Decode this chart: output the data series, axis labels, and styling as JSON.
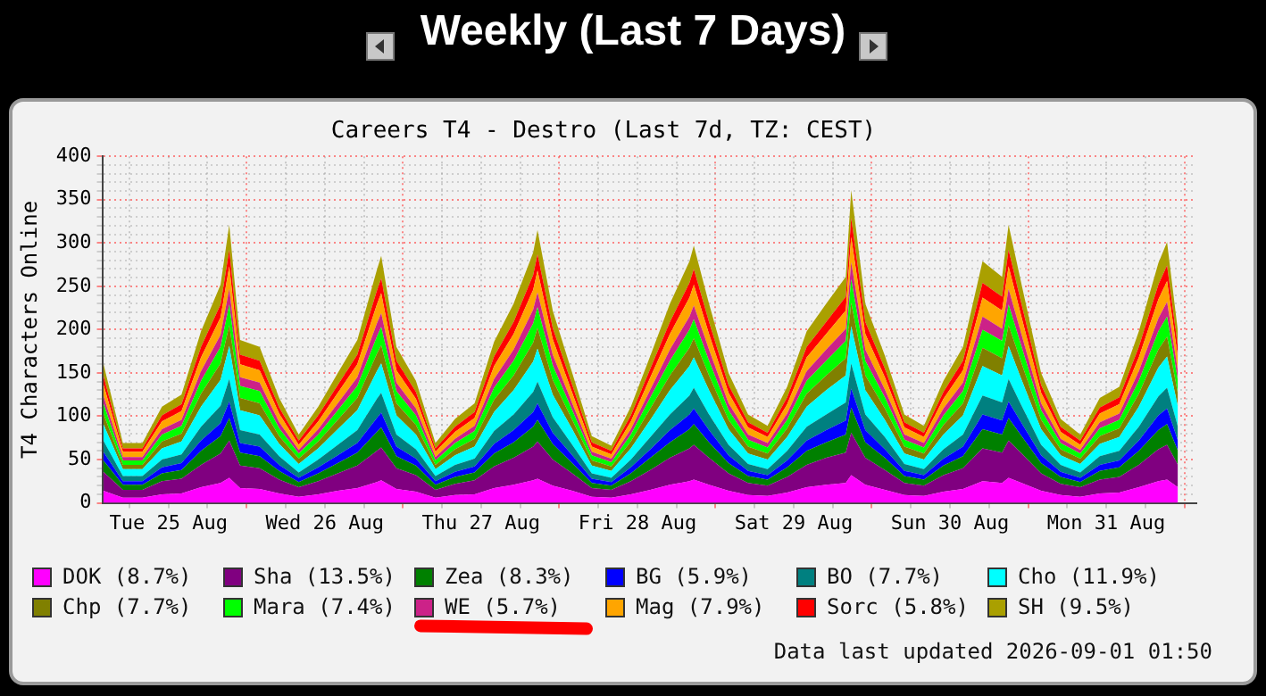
{
  "chart_data": {
    "type": "area",
    "stacked": true,
    "title": "Weekly (Last 7 Days)",
    "subtitle": "Careers T4 - Destro (Last 7d, TZ: CEST)",
    "ylabel": "T4 Characters Online",
    "annotations": [
      "Data last updated 2026-09-01 01:50"
    ],
    "legend": "bottom",
    "grid": true,
    "xlim": [
      "2026-08-25T01:50",
      "2026-09-01T01:50"
    ],
    "ylim": [
      0,
      400
    ],
    "yticks": [
      0,
      {
        "value": 10,
        "label": null
      },
      {
        "value": 20,
        "label": null
      },
      {
        "value": 30,
        "label": null
      },
      {
        "value": 40,
        "label": null
      },
      50,
      {
        "value": 60,
        "label": null
      },
      {
        "value": 70,
        "label": null
      },
      {
        "value": 80,
        "label": null
      },
      {
        "value": 90,
        "label": null
      },
      100,
      {
        "value": 110,
        "label": null
      },
      {
        "value": 120,
        "label": null
      },
      {
        "value": 130,
        "label": null
      },
      {
        "value": 140,
        "label": null
      },
      150,
      {
        "value": 160,
        "label": null
      },
      {
        "value": 170,
        "label": null
      },
      {
        "value": 180,
        "label": null
      },
      {
        "value": 190,
        "label": null
      },
      200,
      {
        "value": 210,
        "label": null
      },
      {
        "value": 220,
        "label": null
      },
      {
        "value": 230,
        "label": null
      },
      {
        "value": 240,
        "label": null
      },
      250,
      {
        "value": 260,
        "label": null
      },
      {
        "value": 270,
        "label": null
      },
      {
        "value": 280,
        "label": null
      },
      {
        "value": 290,
        "label": null
      },
      300,
      {
        "value": 310,
        "label": null
      },
      {
        "value": 320,
        "label": null
      },
      {
        "value": 330,
        "label": null
      },
      {
        "value": 340,
        "label": null
      },
      350,
      {
        "value": 360,
        "label": null
      },
      {
        "value": 370,
        "label": null
      },
      {
        "value": 380,
        "label": null
      },
      {
        "value": 390,
        "label": null
      },
      400
    ],
    "xticks": [
      {
        "value": "2026-08-25T06:00",
        "label": null
      },
      {
        "value": "2026-08-25T12:00",
        "label": "Tue 25 Aug"
      },
      {
        "value": "2026-08-25T18:00",
        "label": null
      },
      {
        "value": "2026-08-26T00:00",
        "label": null
      },
      {
        "value": "2026-08-26T06:00",
        "label": null
      },
      {
        "value": "2026-08-26T12:00",
        "label": "Wed 26 Aug"
      },
      {
        "value": "2026-08-26T18:00",
        "label": null
      },
      {
        "value": "2026-08-27T00:00",
        "label": null
      },
      {
        "value": "2026-08-27T06:00",
        "label": null
      },
      {
        "value": "2026-08-27T12:00",
        "label": "Thu 27 Aug"
      },
      {
        "value": "2026-08-27T18:00",
        "label": null
      },
      {
        "value": "2026-08-28T00:00",
        "label": null
      },
      {
        "value": "2026-08-28T06:00",
        "label": null
      },
      {
        "value": "2026-08-28T12:00",
        "label": "Fri 28 Aug"
      },
      {
        "value": "2026-08-28T18:00",
        "label": null
      },
      {
        "value": "2026-08-29T00:00",
        "label": null
      },
      {
        "value": "2026-08-29T06:00",
        "label": null
      },
      {
        "value": "2026-08-29T12:00",
        "label": "Sat 29 Aug"
      },
      {
        "value": "2026-08-29T18:00",
        "label": null
      },
      {
        "value": "2026-08-30T00:00",
        "label": null
      },
      {
        "value": "2026-08-30T06:00",
        "label": null
      },
      {
        "value": "2026-08-30T12:00",
        "label": "Sun 30 Aug"
      },
      {
        "value": "2026-08-30T18:00",
        "label": null
      },
      {
        "value": "2026-08-31T00:00",
        "label": null
      },
      {
        "value": "2026-08-31T06:00",
        "label": null
      },
      {
        "value": "2026-08-31T12:00",
        "label": "Mon 31 Aug"
      },
      {
        "value": "2026-08-31T18:00",
        "label": null
      },
      {
        "value": "2026-09-01T00:00",
        "label": null
      }
    ],
    "x": [
      "2026-08-25T02:00",
      "2026-08-25T05:00",
      "2026-08-25T08:00",
      "2026-08-25T11:00",
      "2026-08-25T14:00",
      "2026-08-25T17:00",
      "2026-08-25T20:00",
      "2026-08-25T21:20",
      "2026-08-25T23:00",
      "2026-08-26T02:00",
      "2026-08-26T05:00",
      "2026-08-26T08:00",
      "2026-08-26T11:00",
      "2026-08-26T14:00",
      "2026-08-26T17:00",
      "2026-08-26T20:00",
      "2026-08-26T20:40",
      "2026-08-26T23:00",
      "2026-08-27T02:00",
      "2026-08-27T05:00",
      "2026-08-27T08:00",
      "2026-08-27T11:00",
      "2026-08-27T14:00",
      "2026-08-27T17:00",
      "2026-08-27T20:00",
      "2026-08-27T20:40",
      "2026-08-27T23:00",
      "2026-08-28T02:00",
      "2026-08-28T05:00",
      "2026-08-28T08:00",
      "2026-08-28T11:00",
      "2026-08-28T14:00",
      "2026-08-28T17:00",
      "2026-08-28T20:00",
      "2026-08-28T20:40",
      "2026-08-28T23:00",
      "2026-08-29T02:00",
      "2026-08-29T05:00",
      "2026-08-29T08:00",
      "2026-08-29T11:00",
      "2026-08-29T14:00",
      "2026-08-29T17:00",
      "2026-08-29T20:00",
      "2026-08-29T20:50",
      "2026-08-29T23:00",
      "2026-08-30T02:00",
      "2026-08-30T05:00",
      "2026-08-30T08:00",
      "2026-08-30T11:00",
      "2026-08-30T14:00",
      "2026-08-30T17:00",
      "2026-08-30T20:00",
      "2026-08-30T21:00",
      "2026-08-30T23:00",
      "2026-08-31T02:00",
      "2026-08-31T05:00",
      "2026-08-31T08:00",
      "2026-08-31T11:00",
      "2026-08-31T14:00",
      "2026-08-31T17:00",
      "2026-08-31T20:00",
      "2026-08-31T21:20",
      "2026-08-31T23:00"
    ],
    "series": [
      {
        "name": "DOK (8.7%)",
        "color": "#ff00ff",
        "values": [
          14,
          6,
          6,
          10,
          11,
          18,
          23,
          29,
          17,
          16,
          11,
          7,
          10,
          14,
          17,
          24,
          26,
          16,
          13,
          6,
          9,
          10,
          17,
          21,
          26,
          28,
          20,
          14,
          7,
          6,
          10,
          15,
          21,
          25,
          27,
          21,
          14,
          9,
          8,
          12,
          18,
          21,
          23,
          32,
          21,
          15,
          9,
          8,
          13,
          16,
          25,
          23,
          29,
          23,
          14,
          9,
          7,
          11,
          12,
          18,
          25,
          27,
          18
        ]
      },
      {
        "name": "Sha (13.5%)",
        "color": "#800080",
        "values": [
          22,
          9,
          9,
          15,
          17,
          26,
          34,
          43,
          26,
          24,
          16,
          11,
          15,
          20,
          26,
          36,
          38,
          24,
          19,
          9,
          13,
          16,
          25,
          31,
          39,
          43,
          30,
          20,
          10,
          9,
          15,
          23,
          31,
          38,
          40,
          31,
          20,
          14,
          12,
          18,
          26,
          31,
          35,
          49,
          31,
          23,
          14,
          12,
          19,
          24,
          38,
          35,
          43,
          34,
          20,
          13,
          11,
          16,
          18,
          26,
          37,
          40,
          26
        ]
      },
      {
        "name": "Zea (8.3%)",
        "color": "#008000",
        "values": [
          13,
          6,
          6,
          9,
          10,
          16,
          20,
          26,
          15,
          14,
          10,
          6,
          9,
          12,
          15,
          22,
          23,
          14,
          11,
          6,
          8,
          9,
          15,
          18,
          23,
          25,
          18,
          12,
          6,
          5,
          9,
          14,
          18,
          22,
          24,
          18,
          12,
          8,
          7,
          11,
          16,
          18,
          21,
          29,
          18,
          14,
          8,
          7,
          11,
          14,
          22,
          21,
          26,
          20,
          12,
          8,
          6,
          10,
          11,
          16,
          22,
          24,
          16
        ]
      },
      {
        "name": "BG (5.9%)",
        "color": "#0000ff",
        "values": [
          10,
          4,
          4,
          7,
          8,
          12,
          15,
          19,
          11,
          11,
          7,
          5,
          7,
          9,
          11,
          16,
          17,
          11,
          8,
          4,
          6,
          7,
          11,
          14,
          17,
          19,
          13,
          9,
          5,
          4,
          7,
          10,
          14,
          17,
          18,
          14,
          9,
          6,
          5,
          8,
          12,
          14,
          16,
          22,
          14,
          10,
          6,
          5,
          8,
          11,
          17,
          16,
          19,
          15,
          9,
          6,
          5,
          7,
          8,
          12,
          17,
          18,
          12
        ]
      },
      {
        "name": "BO (7.7%)",
        "color": "#008080",
        "values": [
          13,
          6,
          6,
          9,
          10,
          16,
          20,
          26,
          15,
          14,
          10,
          6,
          9,
          12,
          15,
          22,
          23,
          14,
          11,
          6,
          8,
          9,
          15,
          18,
          23,
          25,
          18,
          12,
          6,
          5,
          9,
          14,
          18,
          22,
          24,
          18,
          12,
          8,
          7,
          11,
          16,
          18,
          21,
          29,
          18,
          14,
          8,
          7,
          11,
          14,
          22,
          21,
          26,
          20,
          12,
          8,
          6,
          10,
          11,
          16,
          22,
          24,
          16
        ]
      },
      {
        "name": "Cho (11.9%)",
        "color": "#00ffff",
        "values": [
          19,
          8,
          8,
          13,
          15,
          23,
          30,
          38,
          23,
          22,
          14,
          10,
          13,
          18,
          23,
          32,
          34,
          22,
          17,
          8,
          11,
          14,
          22,
          28,
          35,
          38,
          26,
          18,
          9,
          8,
          13,
          20,
          28,
          34,
          35,
          28,
          18,
          12,
          11,
          16,
          23,
          28,
          31,
          43,
          28,
          20,
          12,
          11,
          17,
          22,
          34,
          31,
          38,
          30,
          18,
          11,
          10,
          14,
          16,
          23,
          33,
          36,
          23
        ]
      },
      {
        "name": "Chp (7.7%)",
        "color": "#808000",
        "values": [
          12,
          5,
          5,
          8,
          9,
          15,
          19,
          24,
          14,
          14,
          9,
          6,
          8,
          11,
          14,
          20,
          21,
          14,
          11,
          5,
          7,
          9,
          14,
          17,
          22,
          24,
          17,
          11,
          6,
          5,
          8,
          13,
          17,
          21,
          22,
          17,
          11,
          8,
          7,
          10,
          15,
          17,
          20,
          27,
          17,
          13,
          8,
          7,
          11,
          14,
          21,
          20,
          24,
          19,
          11,
          7,
          6,
          9,
          10,
          15,
          21,
          23,
          15
        ]
      },
      {
        "name": "Mara (7.4%)",
        "color": "#00ff00",
        "values": [
          12,
          5,
          5,
          8,
          9,
          15,
          19,
          24,
          14,
          14,
          9,
          6,
          8,
          11,
          14,
          20,
          21,
          14,
          11,
          5,
          7,
          9,
          14,
          17,
          22,
          24,
          17,
          11,
          6,
          5,
          8,
          13,
          17,
          21,
          22,
          17,
          11,
          8,
          7,
          10,
          15,
          17,
          20,
          27,
          17,
          13,
          8,
          7,
          11,
          14,
          21,
          20,
          24,
          19,
          11,
          7,
          6,
          9,
          10,
          15,
          21,
          23,
          15
        ]
      },
      {
        "name": "WE (5.7%)",
        "color": "#cc2288",
        "values": [
          9,
          4,
          4,
          6,
          7,
          11,
          14,
          18,
          10,
          10,
          7,
          4,
          6,
          8,
          10,
          15,
          16,
          10,
          8,
          4,
          5,
          6,
          10,
          13,
          16,
          17,
          12,
          8,
          4,
          4,
          6,
          9,
          13,
          15,
          16,
          13,
          8,
          6,
          5,
          7,
          11,
          13,
          14,
          20,
          13,
          9,
          6,
          5,
          8,
          10,
          15,
          14,
          18,
          14,
          8,
          5,
          4,
          7,
          7,
          11,
          15,
          17,
          11
        ]
      },
      {
        "name": "Mag (7.9%)",
        "color": "#ffa500",
        "values": [
          13,
          6,
          6,
          9,
          10,
          16,
          20,
          26,
          15,
          14,
          10,
          6,
          9,
          12,
          15,
          22,
          23,
          14,
          11,
          6,
          8,
          9,
          15,
          18,
          23,
          25,
          18,
          12,
          6,
          5,
          9,
          14,
          18,
          22,
          24,
          18,
          12,
          8,
          7,
          11,
          16,
          18,
          21,
          29,
          18,
          14,
          8,
          7,
          11,
          14,
          22,
          21,
          26,
          20,
          12,
          8,
          6,
          10,
          11,
          16,
          22,
          24,
          16
        ]
      },
      {
        "name": "Sorc (5.8%)",
        "color": "#ff0000",
        "values": [
          10,
          4,
          4,
          7,
          8,
          12,
          15,
          19,
          11,
          11,
          7,
          5,
          7,
          9,
          11,
          16,
          17,
          11,
          8,
          4,
          6,
          7,
          11,
          14,
          17,
          19,
          13,
          9,
          5,
          4,
          7,
          10,
          14,
          17,
          18,
          14,
          9,
          6,
          5,
          8,
          12,
          14,
          16,
          22,
          14,
          10,
          6,
          5,
          8,
          11,
          17,
          16,
          19,
          15,
          9,
          6,
          5,
          7,
          8,
          12,
          17,
          18,
          12
        ]
      },
      {
        "name": "SH (9.5%)",
        "color": "#aaa000",
        "values": [
          14,
          6,
          6,
          10,
          11,
          18,
          23,
          29,
          17,
          16,
          11,
          7,
          10,
          14,
          17,
          24,
          26,
          16,
          13,
          6,
          9,
          10,
          17,
          21,
          26,
          28,
          20,
          14,
          7,
          6,
          10,
          15,
          21,
          25,
          27,
          21,
          14,
          9,
          8,
          12,
          18,
          21,
          23,
          32,
          21,
          15,
          9,
          8,
          13,
          16,
          25,
          23,
          29,
          23,
          14,
          9,
          7,
          11,
          12,
          18,
          25,
          27,
          18
        ]
      }
    ]
  }
}
